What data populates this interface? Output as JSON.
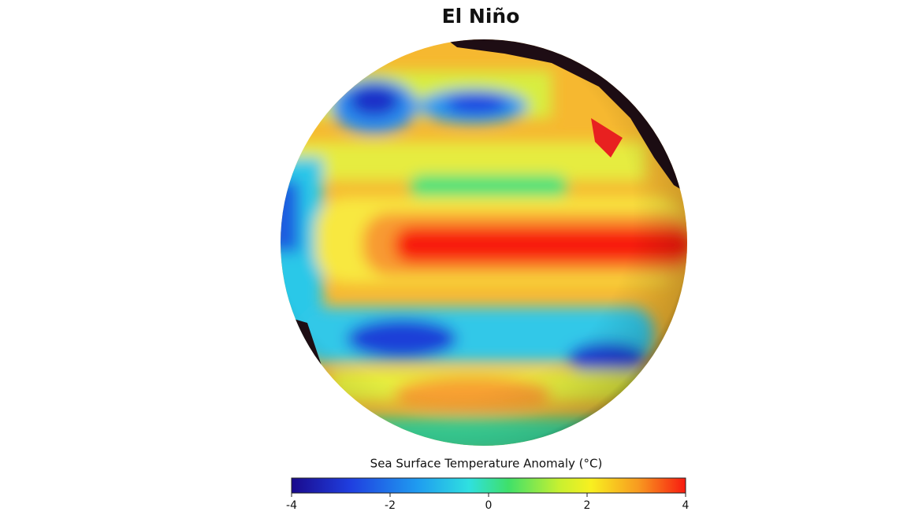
{
  "title": "El Niño",
  "colorbar": {
    "label": "Sea Surface Temperature Anomaly (°C)",
    "range": [
      -4,
      4
    ],
    "ticks": [
      -4,
      -2,
      0,
      2,
      4
    ]
  }
}
